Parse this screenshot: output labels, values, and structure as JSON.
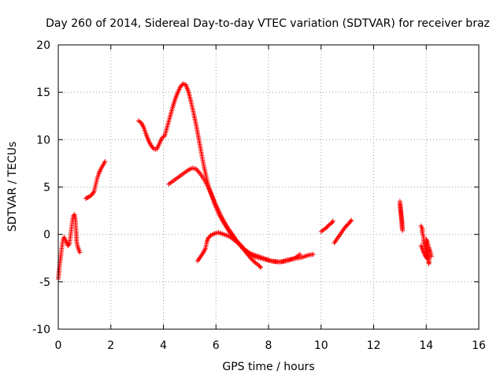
{
  "chart_data": {
    "type": "scatter",
    "title": "Day 260 of 2014, Sidereal Day-to-day VTEC variation (SDTVAR) for receiver braz",
    "xlabel": "GPS time / hours",
    "ylabel": "SDTVAR / TECUs",
    "xlim": [
      0,
      16
    ],
    "ylim": [
      -10,
      20
    ],
    "xticks": [
      "0",
      "2",
      "4",
      "6",
      "8",
      "10",
      "12",
      "14",
      "16"
    ],
    "yticks": [
      "-10",
      "-5",
      "0",
      "5",
      "10",
      "15",
      "20"
    ],
    "grid": true,
    "marker": "plus",
    "color": "#ff0000",
    "series": [
      {
        "name": "s1",
        "points": [
          [
            0.0,
            -4.7
          ],
          [
            0.03,
            -3.9
          ],
          [
            0.06,
            -3.0
          ],
          [
            0.1,
            -2.2
          ],
          [
            0.14,
            -1.3
          ],
          [
            0.18,
            -0.6
          ],
          [
            0.22,
            -0.3
          ],
          [
            0.27,
            -0.6
          ],
          [
            0.32,
            -0.9
          ],
          [
            0.37,
            -1.2
          ],
          [
            0.42,
            -1.0
          ],
          [
            0.46,
            -0.3
          ],
          [
            0.5,
            0.6
          ],
          [
            0.54,
            1.5
          ],
          [
            0.58,
            2.0
          ],
          [
            0.62,
            2.1
          ],
          [
            0.65,
            1.5
          ],
          [
            0.68,
            0.3
          ],
          [
            0.7,
            -0.8
          ],
          [
            0.74,
            -1.3
          ],
          [
            0.78,
            -1.6
          ],
          [
            0.82,
            -1.9
          ]
        ]
      },
      {
        "name": "s2",
        "points": [
          [
            1.05,
            3.8
          ],
          [
            1.12,
            3.9
          ],
          [
            1.2,
            4.0
          ],
          [
            1.28,
            4.2
          ],
          [
            1.36,
            4.5
          ],
          [
            1.42,
            5.2
          ],
          [
            1.48,
            5.9
          ],
          [
            1.54,
            6.4
          ],
          [
            1.6,
            6.8
          ],
          [
            1.66,
            7.1
          ],
          [
            1.72,
            7.4
          ],
          [
            1.78,
            7.7
          ]
        ]
      },
      {
        "name": "s3",
        "points": [
          [
            3.05,
            12.0
          ],
          [
            3.15,
            11.8
          ],
          [
            3.25,
            11.3
          ],
          [
            3.35,
            10.5
          ],
          [
            3.45,
            9.8
          ],
          [
            3.55,
            9.3
          ],
          [
            3.65,
            9.0
          ],
          [
            3.75,
            9.0
          ],
          [
            3.85,
            9.6
          ],
          [
            3.95,
            10.2
          ],
          [
            4.05,
            10.4
          ],
          [
            4.15,
            11.4
          ],
          [
            4.25,
            12.4
          ],
          [
            4.35,
            13.4
          ],
          [
            4.45,
            14.3
          ],
          [
            4.55,
            15.0
          ],
          [
            4.65,
            15.6
          ],
          [
            4.75,
            15.9
          ],
          [
            4.85,
            15.8
          ],
          [
            4.95,
            15.1
          ],
          [
            5.05,
            14.0
          ],
          [
            5.15,
            12.8
          ],
          [
            5.25,
            11.5
          ],
          [
            5.35,
            10.0
          ],
          [
            5.45,
            8.5
          ],
          [
            5.55,
            7.1
          ],
          [
            5.65,
            5.8
          ],
          [
            5.75,
            4.8
          ],
          [
            5.85,
            4.0
          ],
          [
            5.95,
            3.2
          ],
          [
            6.1,
            2.2
          ],
          [
            6.3,
            1.2
          ],
          [
            6.5,
            0.3
          ],
          [
            6.7,
            -0.4
          ],
          [
            6.9,
            -1.0
          ],
          [
            7.1,
            -1.6
          ],
          [
            7.3,
            -2.1
          ],
          [
            7.5,
            -2.4
          ],
          [
            7.8,
            -2.6
          ],
          [
            8.1,
            -2.8
          ],
          [
            8.4,
            -2.9
          ],
          [
            8.7,
            -2.8
          ],
          [
            9.0,
            -2.5
          ],
          [
            9.2,
            -2.1
          ]
        ]
      },
      {
        "name": "s4",
        "points": [
          [
            4.2,
            5.3
          ],
          [
            4.35,
            5.6
          ],
          [
            4.5,
            5.9
          ],
          [
            4.65,
            6.2
          ],
          [
            4.8,
            6.5
          ],
          [
            4.95,
            6.8
          ],
          [
            5.1,
            7.0
          ],
          [
            5.25,
            6.9
          ],
          [
            5.4,
            6.4
          ],
          [
            5.55,
            5.8
          ],
          [
            5.7,
            5.0
          ],
          [
            5.85,
            4.1
          ],
          [
            6.0,
            3.1
          ],
          [
            6.15,
            2.2
          ],
          [
            6.3,
            1.4
          ],
          [
            6.45,
            0.7
          ],
          [
            6.6,
            0.1
          ],
          [
            6.75,
            -0.5
          ],
          [
            6.9,
            -1.1
          ],
          [
            7.05,
            -1.6
          ],
          [
            7.2,
            -2.1
          ],
          [
            7.35,
            -2.6
          ],
          [
            7.5,
            -3.0
          ],
          [
            7.65,
            -3.3
          ],
          [
            7.7,
            -3.5
          ]
        ]
      },
      {
        "name": "s5",
        "points": [
          [
            5.3,
            -2.8
          ],
          [
            5.4,
            -2.4
          ],
          [
            5.5,
            -2.0
          ],
          [
            5.6,
            -1.5
          ],
          [
            5.65,
            -0.8
          ],
          [
            5.7,
            -0.4
          ],
          [
            5.8,
            -0.1
          ],
          [
            5.95,
            0.1
          ],
          [
            6.1,
            0.2
          ],
          [
            6.3,
            0.0
          ],
          [
            6.5,
            -0.2
          ],
          [
            6.7,
            -0.6
          ],
          [
            6.9,
            -1.1
          ],
          [
            7.1,
            -1.6
          ],
          [
            7.3,
            -2.0
          ],
          [
            7.5,
            -2.2
          ],
          [
            7.7,
            -2.4
          ],
          [
            7.9,
            -2.6
          ],
          [
            8.1,
            -2.8
          ],
          [
            8.3,
            -2.9
          ],
          [
            8.5,
            -2.9
          ],
          [
            8.7,
            -2.7
          ],
          [
            8.9,
            -2.6
          ],
          [
            9.1,
            -2.5
          ],
          [
            9.3,
            -2.4
          ],
          [
            9.5,
            -2.2
          ],
          [
            9.7,
            -2.1
          ]
        ]
      },
      {
        "name": "s6",
        "points": [
          [
            10.0,
            0.3
          ],
          [
            10.1,
            0.5
          ],
          [
            10.2,
            0.7
          ],
          [
            10.3,
            1.0
          ],
          [
            10.4,
            1.2
          ],
          [
            10.45,
            1.4
          ]
        ]
      },
      {
        "name": "s7",
        "points": [
          [
            10.5,
            -0.9
          ],
          [
            10.6,
            -0.5
          ],
          [
            10.7,
            -0.1
          ],
          [
            10.8,
            0.3
          ],
          [
            10.9,
            0.7
          ],
          [
            11.0,
            1.0
          ],
          [
            11.1,
            1.3
          ],
          [
            11.15,
            1.5
          ]
        ]
      },
      {
        "name": "s8",
        "points": [
          [
            13.0,
            3.2
          ],
          [
            13.02,
            2.7
          ],
          [
            13.04,
            2.2
          ],
          [
            13.06,
            1.7
          ],
          [
            13.08,
            1.2
          ],
          [
            13.08,
            0.7
          ],
          [
            13.1,
            0.4
          ],
          [
            13.0,
            3.5
          ]
        ]
      },
      {
        "name": "s9",
        "points": [
          [
            13.8,
            0.9
          ],
          [
            13.85,
            0.6
          ],
          [
            13.85,
            0.2
          ],
          [
            13.9,
            -0.3
          ],
          [
            13.9,
            -0.8
          ],
          [
            13.95,
            -1.3
          ],
          [
            14.0,
            -1.8
          ],
          [
            14.05,
            -2.1
          ],
          [
            14.1,
            -2.5
          ],
          [
            14.1,
            -2.9
          ],
          [
            14.1,
            -3.1
          ]
        ]
      },
      {
        "name": "s10",
        "points": [
          [
            13.8,
            -1.2
          ],
          [
            13.85,
            -1.5
          ],
          [
            13.9,
            -1.9
          ],
          [
            13.95,
            -2.2
          ],
          [
            14.0,
            -2.4
          ],
          [
            14.05,
            -2.6
          ],
          [
            14.0,
            -0.5
          ],
          [
            14.05,
            -0.9
          ],
          [
            14.1,
            -1.4
          ],
          [
            14.15,
            -1.8
          ],
          [
            14.2,
            -2.3
          ]
        ]
      }
    ]
  }
}
